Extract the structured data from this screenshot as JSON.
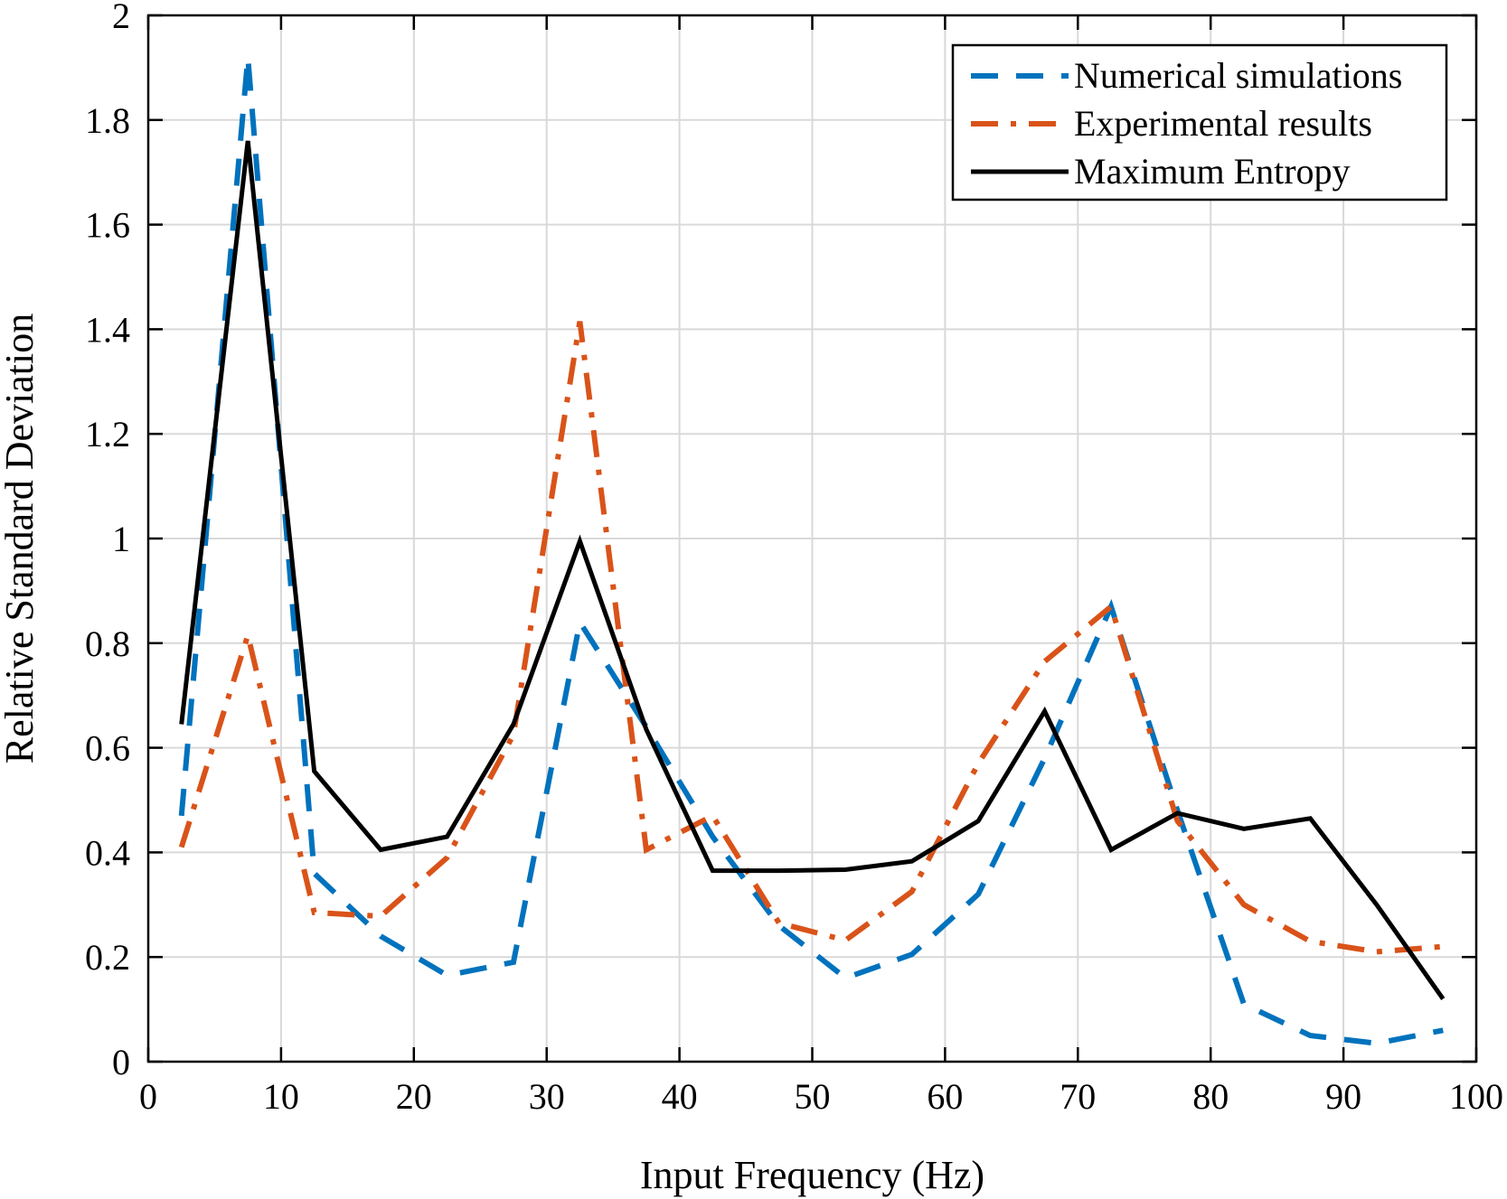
{
  "chart_data": {
    "type": "line",
    "title": "",
    "xlabel": "Input Frequency (Hz)",
    "ylabel": "Relative Standard Deviation",
    "xlim": [
      0,
      100
    ],
    "ylim": [
      0,
      2
    ],
    "xticks": [
      0,
      10,
      20,
      30,
      40,
      50,
      60,
      70,
      80,
      90,
      100
    ],
    "xtick_labels": [
      "0",
      "10",
      "20",
      "30",
      "40",
      "50",
      "60",
      "70",
      "80",
      "90",
      "100"
    ],
    "yticks": [
      0,
      0.2,
      0.4,
      0.6,
      0.8,
      1,
      1.2,
      1.4,
      1.6,
      1.8,
      2
    ],
    "ytick_labels": [
      "0",
      "0.2",
      "0.4",
      "0.6",
      "0.8",
      "1",
      "1.2",
      "1.4",
      "1.6",
      "1.8",
      "2"
    ],
    "grid": true,
    "legend_position": "top-right",
    "x": [
      2.5,
      7.5,
      12.5,
      17.5,
      22.5,
      27.5,
      32.5,
      37.5,
      42.5,
      47.5,
      52.5,
      57.5,
      62.5,
      67.5,
      72.5,
      77.5,
      82.5,
      87.5,
      92.5,
      97.5
    ],
    "series": [
      {
        "name": "Numerical simulations",
        "color": "#0072BD",
        "style": "dashed",
        "values": [
          0.47,
          1.92,
          0.36,
          0.24,
          0.165,
          0.19,
          0.84,
          0.64,
          0.43,
          0.26,
          0.16,
          0.205,
          0.32,
          0.58,
          0.87,
          0.48,
          0.11,
          0.05,
          0.035,
          0.06
        ]
      },
      {
        "name": "Experimental results",
        "color": "#D95319",
        "style": "dashdot",
        "values": [
          0.41,
          0.815,
          0.285,
          0.278,
          0.39,
          0.625,
          1.415,
          0.405,
          0.47,
          0.265,
          0.232,
          0.325,
          0.57,
          0.765,
          0.87,
          0.46,
          0.3,
          0.23,
          0.21,
          0.22
        ]
      },
      {
        "name": "Maximum Entropy",
        "color": "#000000",
        "style": "solid",
        "values": [
          0.645,
          1.76,
          0.555,
          0.405,
          0.43,
          0.645,
          0.995,
          0.635,
          0.365,
          0.365,
          0.367,
          0.383,
          0.46,
          0.67,
          0.405,
          0.475,
          0.445,
          0.465,
          0.3,
          0.12
        ]
      }
    ]
  }
}
